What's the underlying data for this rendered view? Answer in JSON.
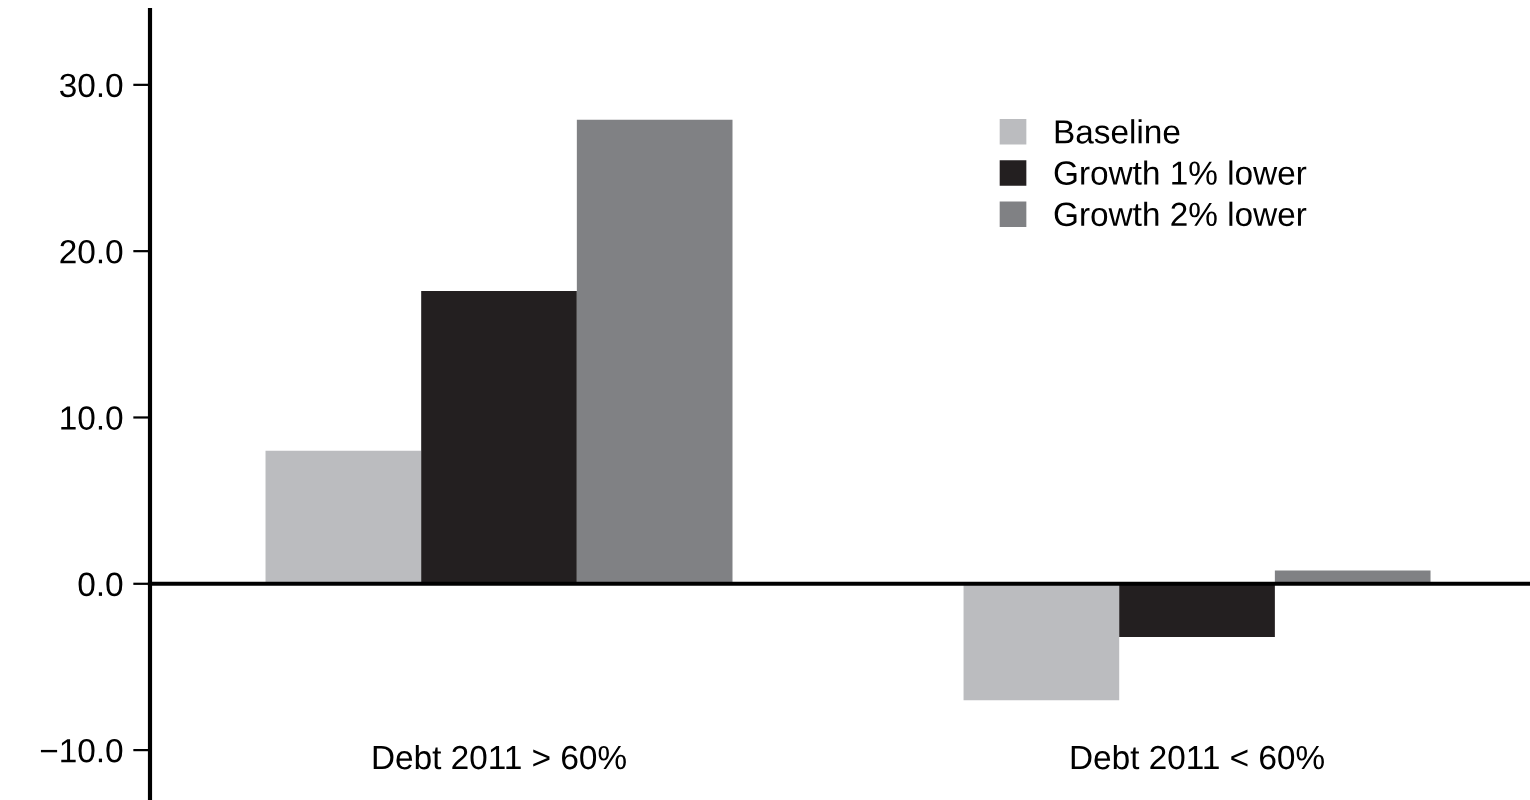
{
  "chart_data": {
    "type": "bar",
    "categories": [
      "Debt 2011 > 60%",
      "Debt 2011 < 60%"
    ],
    "series": [
      {
        "name": "Baseline",
        "color": "#bbbcbf",
        "values": [
          8.0,
          -7.0
        ]
      },
      {
        "name": "Growth 1% lower",
        "color": "#231f20",
        "values": [
          17.6,
          -3.2
        ]
      },
      {
        "name": "Growth 2% lower",
        "color": "#808184",
        "values": [
          27.9,
          0.8
        ]
      }
    ],
    "ylim": [
      -13,
      34.5
    ],
    "yticks": [
      {
        "value": -10,
        "label": "−10.0"
      },
      {
        "value": 0,
        "label": "0.0"
      },
      {
        "value": 10,
        "label": "10.0"
      },
      {
        "value": 20,
        "label": "20.0"
      },
      {
        "value": 30,
        "label": "30.0"
      }
    ],
    "legend": "top right"
  }
}
